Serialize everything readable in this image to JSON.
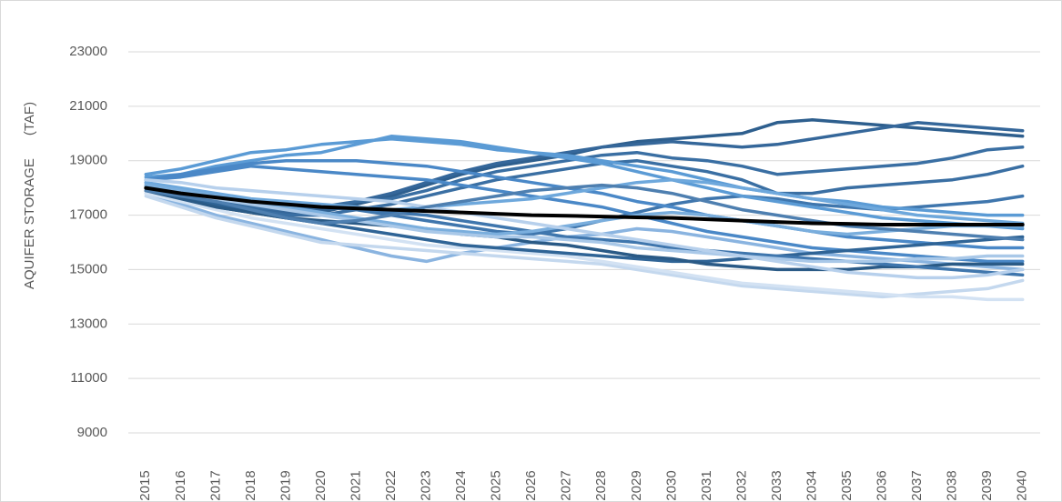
{
  "chart_data": {
    "type": "line",
    "y_label": "AQUIFER STORAGE      (TAF)",
    "categories": [
      "2015",
      "2016",
      "2017",
      "2018",
      "2019",
      "2020",
      "2021",
      "2022",
      "2023",
      "2024",
      "2025",
      "2026",
      "2027",
      "2028",
      "2029",
      "2030",
      "2031",
      "2032",
      "2033",
      "2034",
      "2035",
      "2036",
      "2037",
      "2038",
      "2039",
      "2040"
    ],
    "ylim": [
      9000,
      23000
    ],
    "yticks": [
      9000,
      11000,
      13000,
      15000,
      17000,
      19000,
      21000,
      23000
    ],
    "grid": true,
    "series": [
      {
        "color": "#2e5f8e",
        "values": [
          17900,
          17600,
          17300,
          17100,
          17000,
          17100,
          17400,
          17700,
          18100,
          18500,
          18800,
          19000,
          19200,
          19500,
          19700,
          19800,
          19900,
          20000,
          20400,
          20500,
          20400,
          20300,
          20200,
          20100,
          20000,
          19900
        ]
      },
      {
        "color": "#35679a",
        "values": [
          18000,
          17700,
          17400,
          17200,
          17100,
          17200,
          17500,
          17800,
          18200,
          18600,
          18900,
          19100,
          19300,
          19500,
          19600,
          19700,
          19600,
          19500,
          19600,
          19800,
          20000,
          20200,
          20400,
          20300,
          20200,
          20100
        ]
      },
      {
        "color": "#3a6fa3",
        "values": [
          18100,
          17800,
          17500,
          17300,
          17200,
          17300,
          17500,
          17600,
          17900,
          18300,
          18600,
          18800,
          19000,
          19200,
          19300,
          19100,
          19000,
          18800,
          18500,
          18600,
          18700,
          18800,
          18900,
          19100,
          19400,
          19500
        ]
      },
      {
        "color": "#3a6fa3",
        "values": [
          17900,
          17600,
          17400,
          17200,
          17000,
          17000,
          17200,
          17400,
          17700,
          18000,
          18300,
          18500,
          18700,
          18900,
          19000,
          18800,
          18600,
          18300,
          17800,
          17800,
          18000,
          18100,
          18200,
          18300,
          18500,
          18800
        ]
      },
      {
        "color": "#3f76ad",
        "values": [
          18200,
          17900,
          17600,
          17400,
          17300,
          17300,
          17200,
          17000,
          16800,
          16600,
          16400,
          16300,
          16500,
          16800,
          17100,
          17400,
          17600,
          17700,
          17600,
          17400,
          17300,
          17200,
          17300,
          17400,
          17500,
          17700
        ]
      },
      {
        "color": "#5b9bd5",
        "values": [
          18500,
          18700,
          19000,
          19300,
          19400,
          19600,
          19700,
          19800,
          19700,
          19600,
          19400,
          19300,
          19200,
          19000,
          18800,
          18600,
          18300,
          18000,
          17800,
          17600,
          17500,
          17300,
          17200,
          17100,
          17000,
          17000
        ]
      },
      {
        "color": "#5b9bd5",
        "values": [
          18400,
          18500,
          18800,
          19000,
          19200,
          19300,
          19600,
          19900,
          19800,
          19700,
          19500,
          19300,
          19100,
          18900,
          18600,
          18300,
          18000,
          17700,
          17500,
          17300,
          17100,
          16900,
          16800,
          16700,
          16600,
          16500
        ]
      },
      {
        "color": "#4a88c7",
        "values": [
          18300,
          18500,
          18700,
          18900,
          19000,
          19000,
          19000,
          18900,
          18800,
          18600,
          18400,
          18200,
          18000,
          17800,
          17500,
          17300,
          17000,
          16800,
          16600,
          16400,
          16200,
          16100,
          16000,
          15900,
          15800,
          15800
        ]
      },
      {
        "color": "#4a88c7",
        "values": [
          18300,
          18400,
          18600,
          18800,
          18700,
          18600,
          18500,
          18400,
          18300,
          18100,
          17900,
          17700,
          17500,
          17300,
          17000,
          16700,
          16400,
          16200,
          16000,
          15800,
          15700,
          15600,
          15500,
          15400,
          15300,
          15300
        ]
      },
      {
        "color": "#8ab4e0",
        "values": [
          17800,
          17400,
          17000,
          16700,
          16400,
          16100,
          15800,
          15500,
          15300,
          15600,
          15800,
          16000,
          16200,
          16300,
          16500,
          16400,
          16200,
          16000,
          15800,
          15600,
          15500,
          15400,
          15300,
          15200,
          15100,
          15000
        ]
      },
      {
        "color": "#c4d8ee",
        "values": [
          17700,
          17300,
          16900,
          16600,
          16300,
          16000,
          15900,
          15800,
          15700,
          15600,
          15500,
          15400,
          15300,
          15200,
          15000,
          14800,
          14600,
          14400,
          14300,
          14200,
          14100,
          14000,
          14100,
          14200,
          14300,
          14600
        ]
      },
      {
        "color": "#d3e2f3",
        "values": [
          17800,
          17500,
          17200,
          16900,
          16700,
          16500,
          16300,
          16100,
          15900,
          15800,
          15700,
          15600,
          15500,
          15300,
          15100,
          14900,
          14700,
          14500,
          14400,
          14300,
          14200,
          14100,
          14000,
          14000,
          13900,
          13900
        ]
      },
      {
        "color": "#2f6496",
        "values": [
          18000,
          17700,
          17400,
          17100,
          16900,
          16700,
          16500,
          16300,
          16100,
          15900,
          15800,
          15700,
          15600,
          15500,
          15400,
          15300,
          15300,
          15400,
          15500,
          15600,
          15700,
          15800,
          15900,
          16000,
          16100,
          16200
        ]
      },
      {
        "color": "#2a5a86",
        "values": [
          17900,
          17600,
          17300,
          17100,
          16900,
          16800,
          16700,
          16600,
          16500,
          16300,
          16200,
          16000,
          15900,
          15700,
          15500,
          15400,
          15200,
          15100,
          15000,
          15000,
          15000,
          15100,
          15100,
          15200,
          15200,
          15200
        ]
      },
      {
        "color": "#3f76ad",
        "values": [
          18100,
          17900,
          17700,
          17500,
          17400,
          17300,
          17200,
          17100,
          17000,
          16800,
          16600,
          16400,
          16200,
          16100,
          16000,
          15800,
          15700,
          15600,
          15500,
          15400,
          15300,
          15200,
          15100,
          15000,
          14900,
          14800
        ]
      },
      {
        "color": "#6ea8dc",
        "values": [
          18200,
          18000,
          17800,
          17600,
          17500,
          17400,
          17300,
          17200,
          17300,
          17400,
          17500,
          17600,
          17800,
          18000,
          18200,
          18300,
          18200,
          18000,
          17800,
          17600,
          17400,
          17200,
          17000,
          16900,
          16800,
          16700
        ]
      },
      {
        "color": "#7aaedd",
        "values": [
          18100,
          17900,
          17700,
          17500,
          17300,
          17100,
          16900,
          16700,
          16500,
          16400,
          16300,
          16400,
          16600,
          16800,
          17000,
          17100,
          17000,
          16800,
          16600,
          16400,
          16300,
          16400,
          16500,
          16600,
          16600,
          16600
        ]
      },
      {
        "color": "#a9c8e8",
        "values": [
          18000,
          17800,
          17600,
          17400,
          17200,
          17000,
          16800,
          16600,
          16400,
          16300,
          16200,
          16200,
          16100,
          16000,
          15800,
          15700,
          15600,
          15500,
          15400,
          15300,
          15300,
          15300,
          15400,
          15400,
          15500,
          15500
        ]
      },
      {
        "color": "#b7d0ec",
        "values": [
          18300,
          18200,
          18000,
          17900,
          17800,
          17700,
          17600,
          17500,
          17300,
          17100,
          16900,
          16700,
          16500,
          16300,
          16100,
          15900,
          15700,
          15500,
          15300,
          15100,
          14900,
          14800,
          14700,
          14700,
          14800,
          15000
        ]
      },
      {
        "color": "#4e7fb0",
        "values": [
          17900,
          17700,
          17500,
          17200,
          16900,
          16700,
          16800,
          17000,
          17300,
          17500,
          17700,
          17900,
          18000,
          18100,
          18000,
          17800,
          17500,
          17200,
          17000,
          16800,
          16600,
          16500,
          16400,
          16300,
          16200,
          16100
        ]
      },
      {
        "color": "#000000",
        "values": [
          18000,
          17800,
          17650,
          17500,
          17400,
          17300,
          17250,
          17200,
          17150,
          17100,
          17050,
          17000,
          16980,
          16950,
          16920,
          16900,
          16850,
          16800,
          16750,
          16700,
          16680,
          16650,
          16650,
          16650,
          16650,
          16650
        ]
      }
    ]
  }
}
